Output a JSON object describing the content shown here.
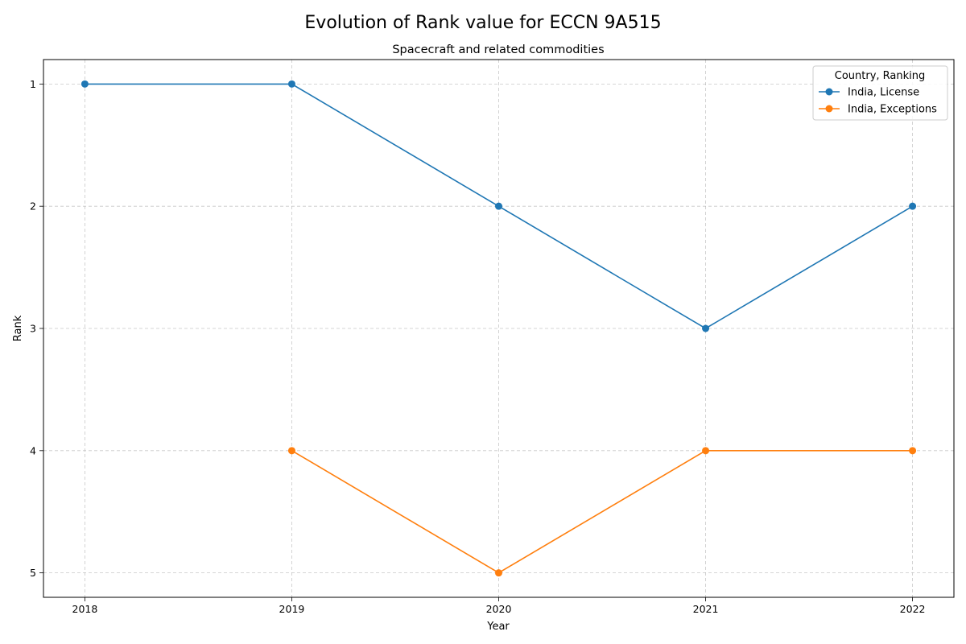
{
  "chart_data": {
    "type": "line",
    "title": "Evolution of Rank value for ECCN 9A515",
    "subtitle": "Spacecraft and related commodities",
    "xlabel": "Year",
    "ylabel": "Rank",
    "x": [
      2018,
      2019,
      2020,
      2021,
      2022
    ],
    "x_tick_labels": [
      "2018",
      "2019",
      "2020",
      "2021",
      "2022"
    ],
    "y_ticks": [
      1,
      2,
      3,
      4,
      5
    ],
    "y_tick_labels": [
      "1",
      "2",
      "3",
      "4",
      "5"
    ],
    "xlim": [
      2017.8,
      2022.2
    ],
    "ylim": [
      5.2,
      0.8
    ],
    "y_inverted": true,
    "grid": true,
    "legend": {
      "title": "Country, Ranking",
      "placement": "top-right"
    },
    "series": [
      {
        "name": "India, License",
        "color": "#1f77b4",
        "points": [
          [
            2018,
            1
          ],
          [
            2019,
            1
          ],
          [
            2020,
            2
          ],
          [
            2021,
            3
          ],
          [
            2022,
            2
          ]
        ]
      },
      {
        "name": "India, Exceptions",
        "color": "#ff7f0e",
        "points": [
          [
            2019,
            4
          ],
          [
            2020,
            5
          ],
          [
            2021,
            4
          ],
          [
            2022,
            4
          ]
        ]
      }
    ]
  }
}
